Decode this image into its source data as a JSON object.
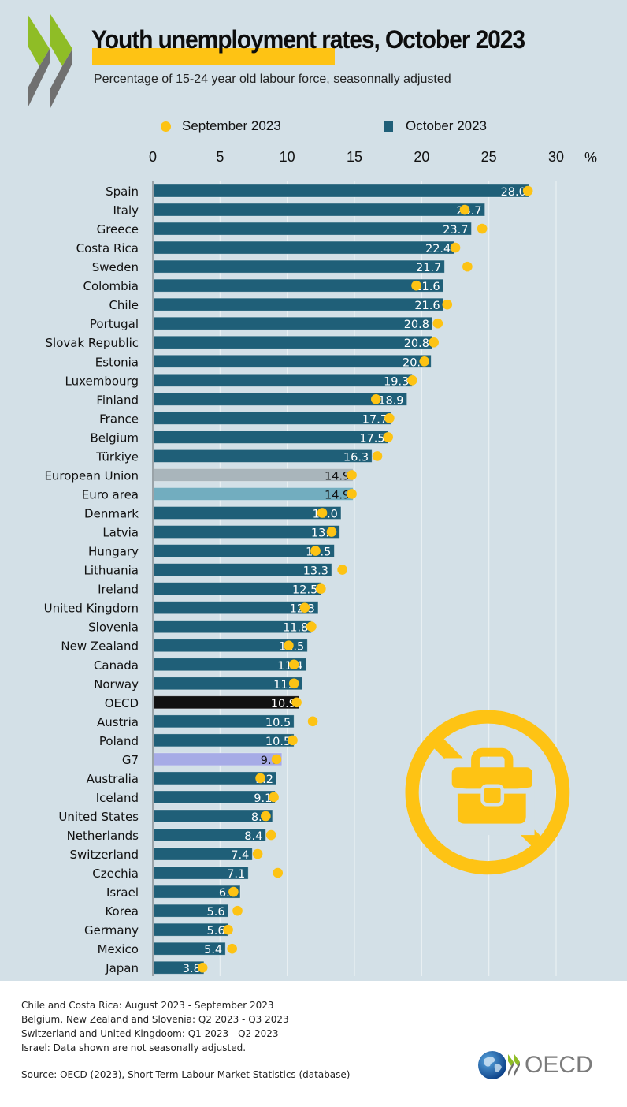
{
  "header": {
    "title": "Youth unemployment rates, October 2023",
    "subtitle": "Percentage of 15-24 year old labour force, seasonnally adjusted"
  },
  "legend": {
    "items": [
      {
        "label": "September 2023",
        "marker": "circle",
        "color": "#fdc314"
      },
      {
        "label": "October 2023",
        "marker": "square",
        "color": "#1f5f78"
      }
    ]
  },
  "colors": {
    "background": "#d3e0e7",
    "bar_default": "#1f5f78",
    "bar_european_union": "#a9b5bb",
    "bar_euro_area": "#72adbf",
    "bar_oecd": "#111111",
    "bar_g7": "#a6abe6",
    "dot": "#fdc314",
    "title_highlight": "#fec314"
  },
  "chart_data": {
    "type": "bar",
    "orientation": "horizontal",
    "title": "Youth unemployment rates, October 2023",
    "subtitle": "Percentage of 15-24 year old labour force, seasonnally adjusted",
    "xlabel": "%",
    "ylabel": "",
    "xlim": [
      0,
      30
    ],
    "xticks": [
      0,
      5,
      10,
      15,
      20,
      25,
      30
    ],
    "axis_unit_label": "%",
    "grid": true,
    "legend_position": "top",
    "categories": [
      "Spain",
      "Italy",
      "Greece",
      "Costa Rica",
      "Sweden",
      "Colombia",
      "Chile",
      "Portugal",
      "Slovak Republic",
      "Estonia",
      "Luxembourg",
      "Finland",
      "France",
      "Belgium",
      "Türkiye",
      "European Union",
      "Euro area",
      "Denmark",
      "Latvia",
      "Hungary",
      "Lithuania",
      "Ireland",
      "United Kingdom",
      "Slovenia",
      "New Zealand",
      "Canada",
      "Norway",
      "OECD",
      "Austria",
      "Poland",
      "G7",
      "Australia",
      "Iceland",
      "United States",
      "Netherlands",
      "Switzerland",
      "Czechia",
      "Israel",
      "Korea",
      "Germany",
      "Mexico",
      "Japan"
    ],
    "series": [
      {
        "name": "October 2023",
        "type": "bar",
        "values": [
          28.0,
          24.7,
          23.7,
          22.4,
          21.7,
          21.6,
          21.6,
          20.8,
          20.8,
          20.7,
          19.3,
          18.9,
          17.7,
          17.5,
          16.3,
          14.9,
          14.9,
          14.0,
          13.9,
          13.5,
          13.3,
          12.5,
          12.3,
          11.8,
          11.5,
          11.4,
          11.1,
          10.9,
          10.5,
          10.5,
          9.6,
          9.2,
          9.1,
          8.9,
          8.4,
          7.4,
          7.1,
          6.5,
          5.6,
          5.6,
          5.4,
          3.8
        ],
        "value_labels": [
          "28.0",
          "24.7",
          "23.7",
          "22.4",
          "21.7",
          "21.6",
          "21.6",
          "20.8",
          "20.8",
          "20.7",
          "19.3",
          "18.9",
          "17.7",
          "17.5",
          "16.3",
          "14.9",
          "14.9",
          "14.0",
          "13.9",
          "13.5",
          "13.3",
          "12.5",
          "12.3",
          "11.8",
          "11.5",
          "11.4",
          "11.1",
          "10.9",
          "10.5",
          "10.5",
          "9.6",
          "9.2",
          "9.1",
          "8.9",
          "8.4",
          "7.4",
          "7.1",
          "6.5",
          "5.6",
          "5.6",
          "5.4",
          "3.8"
        ]
      },
      {
        "name": "September 2023",
        "type": "scatter",
        "values": [
          27.9,
          23.2,
          24.5,
          22.5,
          23.4,
          19.6,
          21.9,
          21.2,
          20.9,
          20.2,
          19.3,
          16.6,
          17.6,
          17.5,
          16.7,
          14.8,
          14.8,
          12.6,
          13.3,
          12.1,
          14.1,
          12.5,
          11.3,
          11.8,
          10.1,
          10.5,
          10.5,
          10.7,
          11.9,
          10.4,
          9.2,
          8.0,
          9.0,
          8.4,
          8.8,
          7.8,
          9.3,
          6.0,
          6.3,
          5.6,
          5.9,
          3.7
        ]
      }
    ],
    "highlighted_categories": {
      "European Union": "bar_european_union",
      "Euro area": "bar_euro_area",
      "OECD": "bar_oecd",
      "G7": "bar_g7"
    }
  },
  "icon": {
    "name": "no-work-briefcase-icon",
    "color": "#fec314"
  },
  "footnotes": [
    "Chile and Costa Rica:  August 2023 - September 2023",
    "Belgium, New Zealand and Slovenia:  Q2 2023 - Q3 2023",
    "Switzerland and United Kingdoom:  Q1 2023 - Q2 2023",
    "Israel:  Data shown are not seasonally adjusted."
  ],
  "source": "Source: OECD (2023), Short-Term Labour Market Statistics (database)",
  "brand": {
    "logo_text": "OECD"
  }
}
